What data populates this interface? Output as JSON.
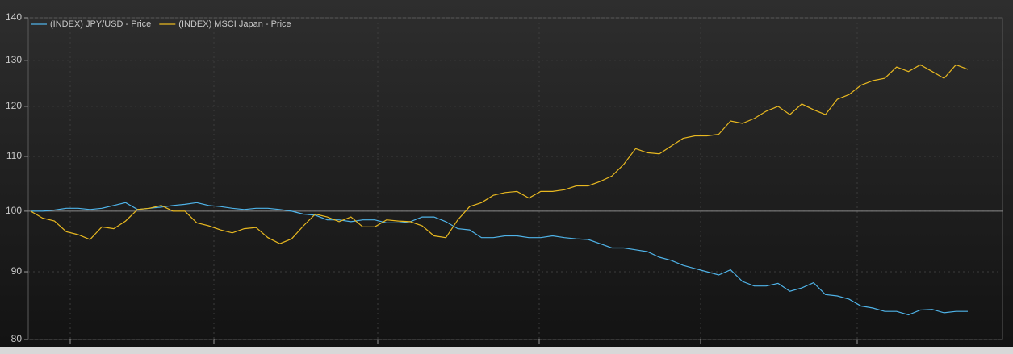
{
  "chart_data": {
    "type": "line",
    "categories": [
      null,
      null,
      null,
      null,
      null,
      null,
      null,
      null,
      null,
      null,
      null,
      null,
      null,
      null,
      null,
      null,
      null,
      null,
      null,
      null,
      null,
      null,
      null,
      null,
      null,
      null,
      null,
      null,
      null,
      null,
      null,
      null,
      null,
      null,
      null,
      null,
      null,
      null,
      null,
      null,
      null,
      null,
      null,
      null,
      null,
      null,
      null,
      null,
      null,
      null,
      null,
      null,
      null,
      null,
      null,
      null,
      null,
      null,
      null,
      null,
      null,
      null,
      null,
      null,
      null,
      null,
      null,
      null,
      null,
      null,
      null,
      null,
      null,
      null,
      null,
      null,
      null,
      null,
      null,
      null
    ],
    "series": [
      {
        "name": "(INDEX) JPY/USD - Price",
        "color": "#4fb3e8",
        "values": [
          100,
          100,
          100.2,
          100.5,
          100.5,
          100.3,
          100.5,
          101,
          101.5,
          100.3,
          100.5,
          100.7,
          101,
          101.2,
          101.5,
          101,
          100.8,
          100.5,
          100.3,
          100.5,
          100.5,
          100.3,
          100,
          99.5,
          99.3,
          98.5,
          98.5,
          98.2,
          98.5,
          98.5,
          98,
          98,
          98.2,
          99,
          99,
          98.2,
          97,
          96.8,
          95.5,
          95.5,
          95.8,
          95.8,
          95.5,
          95.5,
          95.8,
          95.5,
          95.3,
          95.2,
          94.5,
          93.8,
          93.8,
          93.5,
          93.2,
          92.3,
          91.8,
          91,
          90.5,
          90,
          89.5,
          90.3,
          88.5,
          87.8,
          87.8,
          88.2,
          87,
          87.5,
          88.3,
          86.5,
          86.3,
          85.8,
          84.8,
          84.5,
          84,
          84,
          83.5,
          84.2,
          84.3,
          83.8,
          84,
          84
        ]
      },
      {
        "name": "(INDEX) MSCI Japan - Price",
        "color": "#e8b820",
        "values": [
          100,
          98.8,
          98.3,
          96.5,
          96,
          95.2,
          97.3,
          97,
          98.3,
          100.3,
          100.5,
          101,
          100,
          100,
          98,
          97.5,
          96.8,
          96.3,
          97,
          97.2,
          95.5,
          94.5,
          95.3,
          97.5,
          99.5,
          99,
          98.2,
          99,
          97.3,
          97.3,
          98.5,
          98.3,
          98.2,
          97.5,
          95.8,
          95.5,
          98.5,
          100.8,
          101.5,
          102.8,
          103.3,
          103.5,
          102.3,
          103.5,
          103.5,
          103.8,
          104.5,
          104.5,
          105.3,
          106.3,
          108.5,
          111.5,
          110.7,
          110.5,
          112,
          113.5,
          114,
          114,
          114.3,
          117,
          116.5,
          117.5,
          119,
          120,
          118.3,
          120.5,
          119.3,
          118.3,
          121.5,
          122.5,
          124.5,
          125.5,
          126,
          128.5,
          127.5,
          129,
          127.5,
          126,
          129,
          128
        ]
      }
    ],
    "ylim": [
      80,
      140
    ],
    "yticks": [
      80,
      90,
      100,
      110,
      120,
      130,
      140
    ],
    "log_y": true,
    "reference_line": 100,
    "legend": "top-left"
  }
}
